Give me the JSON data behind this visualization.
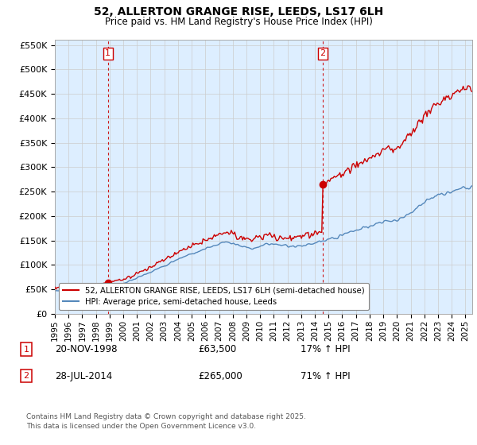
{
  "title": "52, ALLERTON GRANGE RISE, LEEDS, LS17 6LH",
  "subtitle": "Price paid vs. HM Land Registry's House Price Index (HPI)",
  "ylim": [
    0,
    560000
  ],
  "yticks": [
    0,
    50000,
    100000,
    150000,
    200000,
    250000,
    300000,
    350000,
    400000,
    450000,
    500000,
    550000
  ],
  "sale1_price": 63500,
  "sale1_x": 1998.88,
  "sale2_price": 265000,
  "sale2_x": 2014.58,
  "line_color_red": "#cc0000",
  "line_color_blue": "#5588bb",
  "vline_color": "#cc0000",
  "marker_color": "#cc0000",
  "grid_color": "#cccccc",
  "background_color": "#ffffff",
  "plot_bg_color": "#ddeeff",
  "legend_label_red": "52, ALLERTON GRANGE RISE, LEEDS, LS17 6LH (semi-detached house)",
  "legend_label_blue": "HPI: Average price, semi-detached house, Leeds",
  "annotation1_date": "20-NOV-1998",
  "annotation1_price": "£63,500",
  "annotation1_hpi": "17% ↑ HPI",
  "annotation2_date": "28-JUL-2014",
  "annotation2_price": "£265,000",
  "annotation2_hpi": "71% ↑ HPI",
  "footer": "Contains HM Land Registry data © Crown copyright and database right 2025.\nThis data is licensed under the Open Government Licence v3.0.",
  "xmin": 1995,
  "xmax": 2025.5
}
